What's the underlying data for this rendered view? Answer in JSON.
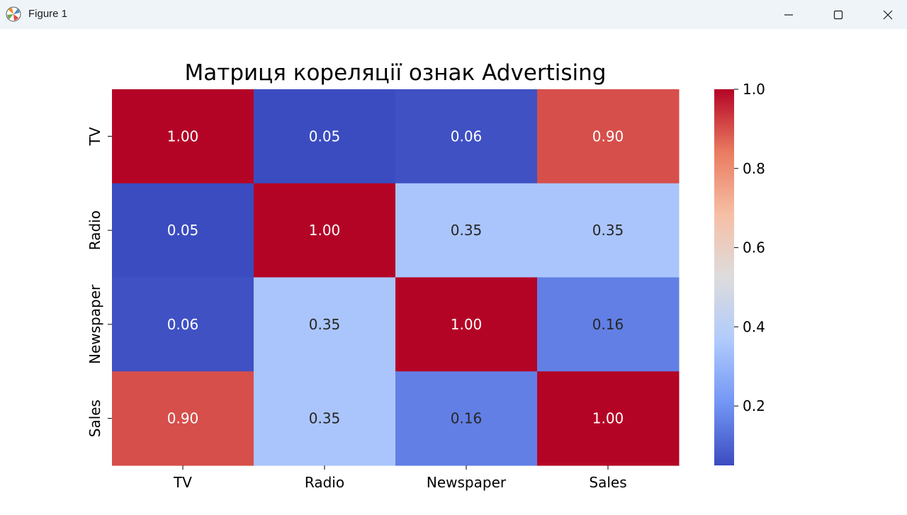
{
  "window": {
    "title": "Figure 1",
    "controls": {
      "minimize_icon": "minimize-icon",
      "maximize_icon": "maximize-icon",
      "close_icon": "close-icon"
    }
  },
  "colors": {
    "titlebar_bg": "#eff4f9",
    "cmap": "coolwarm",
    "cmap_stops": [
      "#3b4cc0",
      "#7396f5",
      "#b0cbfc",
      "#dddcdc",
      "#f6bfa6",
      "#ea7b60",
      "#b40426"
    ]
  },
  "chart_data": {
    "type": "heatmap",
    "title": "Матриця кореляції ознак Advertising",
    "x_labels": [
      "TV",
      "Radio",
      "Newspaper",
      "Sales"
    ],
    "y_labels": [
      "TV",
      "Radio",
      "Newspaper",
      "Sales"
    ],
    "values": [
      [
        1.0,
        0.05,
        0.06,
        0.9
      ],
      [
        0.05,
        1.0,
        0.35,
        0.35
      ],
      [
        0.06,
        0.35,
        1.0,
        0.16
      ],
      [
        0.9,
        0.35,
        0.16,
        1.0
      ]
    ],
    "annotation_format": "0.00",
    "colorbar": {
      "vmin": 0.05,
      "vmax": 1.0,
      "ticks": [
        0.2,
        0.4,
        0.6,
        0.8,
        1.0
      ],
      "tick_labels": [
        "0.2",
        "0.4",
        "0.6",
        "0.8",
        "1.0"
      ]
    }
  }
}
